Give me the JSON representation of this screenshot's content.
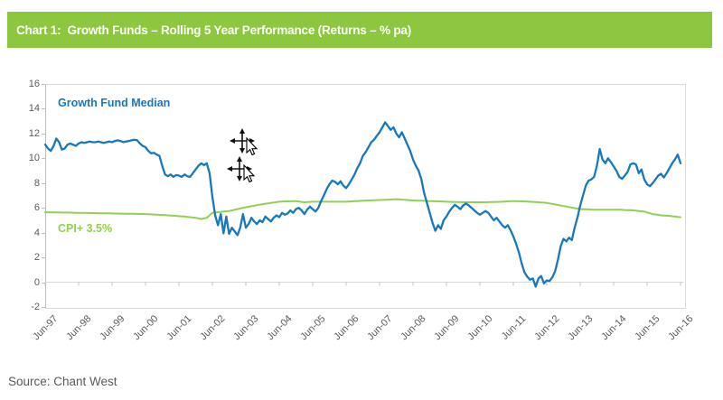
{
  "header": {
    "title": "Chart 1:  Growth Funds – Rolling 5 Year Performance (Returns – % pa)",
    "bg_color": "#8DC63F",
    "text_color": "#FFFFFF"
  },
  "footer": {
    "source": "Source: Chant West"
  },
  "icons": {
    "move_cursor": "move-cursor-icon",
    "pointer_cursor": "arrow-pointer-icon"
  },
  "colors": {
    "growth_line": "#1878BE",
    "cpi_line": "#92D050",
    "grid": "#D9D9D9",
    "axis": "#BFBFBF",
    "axis_text": "#595959"
  },
  "chart_data": {
    "type": "line",
    "title": "Growth Funds – Rolling 5 Year Performance (Returns – % pa)",
    "xlabel": "",
    "ylabel": "",
    "ylim": [
      -2,
      16
    ],
    "y_ticks": [
      16,
      14,
      12,
      10,
      8,
      6,
      4,
      2,
      0,
      -2
    ],
    "x_tick_labels": [
      "Jun-97",
      "Jun-98",
      "Jun-99",
      "Jun-00",
      "Jun-01",
      "Jun-02",
      "Jun-03",
      "Jun-04",
      "Jun-05",
      "Jun-06",
      "Jun-07",
      "Jun-08",
      "Jun-09",
      "Jun-10",
      "Jun-11",
      "Jun-12",
      "Jun-13",
      "Jun-14",
      "Jun-15",
      "Jun-16"
    ],
    "x_unit": "months since Jun-97, monthly data",
    "grid": "zero-line only",
    "legend_position": "inside plot, labels near lines",
    "series": [
      {
        "name": "Growth Fund Median",
        "color": "#1878BE",
        "values": [
          11.1,
          10.8,
          10.6,
          11.0,
          11.6,
          11.3,
          10.7,
          10.8,
          11.1,
          11.2,
          11.1,
          11.0,
          11.2,
          11.3,
          11.25,
          11.3,
          11.35,
          11.3,
          11.3,
          11.35,
          11.3,
          11.25,
          11.3,
          11.35,
          11.3,
          11.4,
          11.45,
          11.4,
          11.3,
          11.35,
          11.4,
          11.45,
          11.5,
          11.45,
          11.2,
          11.0,
          10.9,
          10.6,
          10.4,
          10.45,
          10.3,
          10.2,
          9.4,
          8.7,
          8.55,
          8.7,
          8.5,
          8.65,
          8.6,
          8.5,
          8.7,
          8.55,
          8.5,
          8.8,
          9.1,
          9.4,
          9.6,
          9.45,
          9.6,
          8.8,
          6.9,
          5.4,
          4.6,
          5.5,
          3.95,
          5.3,
          3.9,
          4.4,
          4.1,
          3.8,
          4.4,
          5.5,
          4.4,
          4.7,
          5.2,
          4.9,
          4.7,
          5.0,
          4.85,
          5.3,
          5.1,
          4.9,
          5.2,
          5.4,
          5.25,
          5.6,
          5.45,
          5.55,
          5.8,
          5.6,
          5.9,
          6.0,
          5.8,
          5.5,
          5.85,
          6.1,
          5.9,
          5.7,
          6.0,
          6.55,
          7.0,
          7.5,
          7.9,
          8.2,
          8.1,
          7.9,
          8.15,
          7.8,
          7.6,
          7.9,
          8.3,
          8.7,
          9.2,
          9.6,
          10.2,
          10.5,
          10.9,
          11.3,
          11.5,
          11.8,
          12.1,
          12.5,
          12.9,
          12.6,
          12.3,
          12.5,
          12.0,
          11.7,
          12.1,
          11.6,
          11.1,
          10.6,
          9.9,
          9.4,
          9.0,
          8.3,
          7.2,
          6.4,
          5.6,
          4.8,
          4.15,
          4.6,
          4.3,
          5.0,
          5.3,
          5.7,
          6.0,
          6.25,
          6.1,
          5.9,
          6.2,
          6.35,
          6.2,
          6.0,
          5.8,
          5.6,
          5.45,
          5.6,
          5.75,
          5.6,
          5.3,
          5.0,
          5.2,
          4.9,
          4.6,
          4.4,
          4.6,
          4.2,
          3.7,
          3.1,
          2.4,
          1.5,
          0.8,
          0.45,
          0.2,
          0.3,
          -0.35,
          0.3,
          0.5,
          -0.1,
          0.15,
          0.1,
          0.4,
          0.9,
          1.8,
          2.9,
          3.5,
          3.3,
          3.6,
          3.4,
          4.4,
          5.2,
          6.2,
          7.0,
          7.8,
          8.2,
          8.3,
          8.5,
          9.4,
          10.75,
          9.9,
          9.6,
          10.0,
          9.7,
          9.35,
          9.0,
          8.5,
          8.35,
          8.6,
          8.9,
          9.5,
          9.6,
          9.5,
          8.8,
          9.1,
          8.3,
          7.9,
          7.75,
          8.0,
          8.3,
          8.6,
          8.75,
          8.45,
          8.8,
          9.2,
          9.6,
          9.9,
          10.3,
          9.6
        ]
      },
      {
        "name": "CPI+ 3.5%",
        "color": "#92D050",
        "anchor_points_month_value": [
          [
            0,
            5.65
          ],
          [
            12,
            5.6
          ],
          [
            24,
            5.55
          ],
          [
            36,
            5.5
          ],
          [
            44,
            5.4
          ],
          [
            50,
            5.3
          ],
          [
            54,
            5.2
          ],
          [
            56,
            5.1
          ],
          [
            58,
            5.2
          ],
          [
            60,
            5.6
          ],
          [
            66,
            5.75
          ],
          [
            72,
            6.05
          ],
          [
            78,
            6.3
          ],
          [
            84,
            6.5
          ],
          [
            90,
            6.55
          ],
          [
            93,
            6.45
          ],
          [
            96,
            6.5
          ],
          [
            108,
            6.5
          ],
          [
            116,
            6.6
          ],
          [
            122,
            6.65
          ],
          [
            126,
            6.7
          ],
          [
            132,
            6.6
          ],
          [
            144,
            6.5
          ],
          [
            150,
            6.45
          ],
          [
            158,
            6.45
          ],
          [
            164,
            6.5
          ],
          [
            168,
            6.55
          ],
          [
            174,
            6.5
          ],
          [
            180,
            6.4
          ],
          [
            186,
            6.15
          ],
          [
            192,
            5.9
          ],
          [
            198,
            5.85
          ],
          [
            206,
            5.85
          ],
          [
            211,
            5.8
          ],
          [
            215,
            5.7
          ],
          [
            218,
            5.5
          ],
          [
            221,
            5.4
          ],
          [
            224,
            5.35
          ],
          [
            228,
            5.25
          ]
        ]
      }
    ]
  }
}
